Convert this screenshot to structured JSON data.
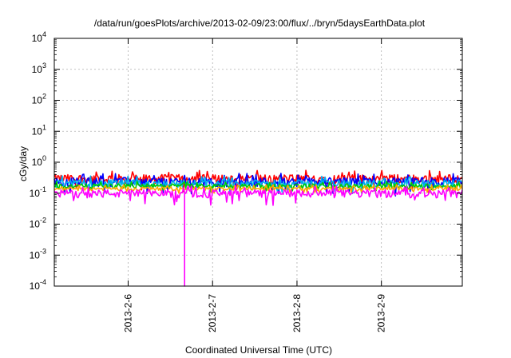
{
  "chart_data": {
    "type": "line",
    "title": "/data/run/goesPlots/archive/2013-02-09/23:00/flux/../bryn/5daysEarthData.plot",
    "xlabel": "Coordinated Universal Time (UTC)",
    "ylabel": "cGy/day",
    "yscale": "log",
    "ylim": [
      0.0001,
      10000
    ],
    "xlim": [
      "2013-02-05 03:00",
      "2013-02-09 23:00"
    ],
    "grid": true,
    "yticks": [
      {
        "base": "10",
        "exp": "-4"
      },
      {
        "base": "10",
        "exp": "-3"
      },
      {
        "base": "10",
        "exp": "-2"
      },
      {
        "base": "10",
        "exp": "-1"
      },
      {
        "base": "10",
        "exp": "0"
      },
      {
        "base": "10",
        "exp": "1"
      },
      {
        "base": "10",
        "exp": "2"
      },
      {
        "base": "10",
        "exp": "3"
      },
      {
        "base": "10",
        "exp": "4"
      }
    ],
    "xticks": [
      {
        "label": "2013-2-6",
        "date": "2013-02-06 00:00"
      },
      {
        "label": "2013-2-7",
        "date": "2013-02-07 00:00"
      },
      {
        "label": "2013-2-8",
        "date": "2013-02-08 00:00"
      },
      {
        "label": "2013-2-9",
        "date": "2013-02-09 00:00"
      }
    ],
    "series": [
      {
        "color": "#ff0000",
        "typical": 0.3,
        "spread": 0.1
      },
      {
        "color": "#0000ff",
        "typical": 0.24,
        "spread": 0.08
      },
      {
        "color": "#00b0f0",
        "typical": 0.21,
        "spread": 0.06
      },
      {
        "color": "#00cc00",
        "typical": 0.17,
        "spread": 0.03
      },
      {
        "color": "#ffa500",
        "typical": 0.14,
        "spread": 0.02
      },
      {
        "color": "#ff00ff",
        "typical": 0.1,
        "spread": 0.03,
        "dropout": {
          "date": "2013-02-06 16:00",
          "value": 0.0001
        }
      }
    ]
  }
}
